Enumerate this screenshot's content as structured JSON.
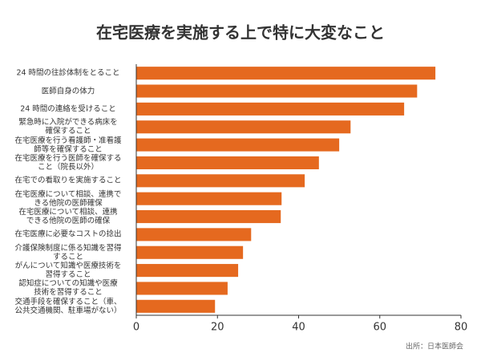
{
  "chart_data": {
    "type": "barh",
    "title": "在宅医療を実施する上で特に大変なこと",
    "categories": [
      "24 時間の往診体制をとること",
      "医師自身の体力",
      "24 時間の連絡を受けること",
      "緊急時に入院ができる病床を\n確保すること",
      "在宅医療を行う看護師・准看護\n師等を確保すること",
      "在宅医療を行う医師を確保する\nこと（院長以外）",
      "在宅での看取りを実施すること",
      "在宅医療について相談、連携で\nきる他院の医師確保",
      "在宅医療について相談、連携\nできる他院の医師の確保",
      "在宅医療に必要なコストの捻出",
      "介護保険制度に係る知識を習得\nすること",
      "がんについて知識や医療技術を\n習得すること",
      "認知症についての知識や医療\n技術を習得すること",
      "交通手段を確保すること（車、\n公共交通機関、駐車場がない）"
    ],
    "values": [
      73.7,
      69.2,
      66,
      52.8,
      50,
      45,
      41.5,
      35.8,
      35.6,
      28.3,
      26.3,
      25.1,
      22.5,
      19.4
    ],
    "color": "#e5691f",
    "xlim": [
      0,
      80
    ],
    "xticks": [
      0,
      20,
      40,
      60,
      80
    ],
    "grid": false,
    "source": "出所：日本医師会"
  }
}
